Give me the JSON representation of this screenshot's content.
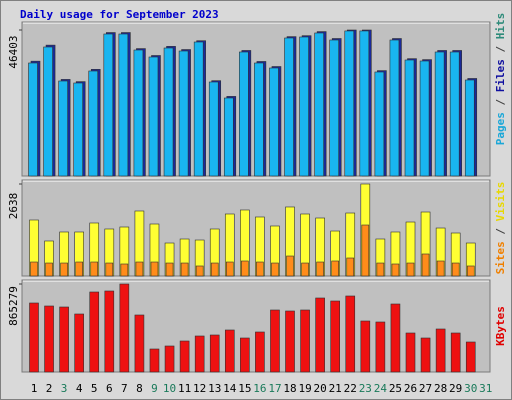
{
  "chart_data": [
    {
      "type": "bar",
      "title": "Daily usage for September 2023",
      "ylim": [
        0,
        46403
      ],
      "yticks": [
        46403
      ],
      "axis_label_parts": [
        {
          "text": "Pages",
          "color": "#1aa7d8"
        },
        {
          "text": " / ",
          "color": "#404040"
        },
        {
          "text": "Files",
          "color": "#1010a0"
        },
        {
          "text": " / ",
          "color": "#404040"
        },
        {
          "text": "Hits",
          "color": "#2e8b7a"
        }
      ],
      "series": [
        {
          "color": "#1a2a9a",
          "values": [
            36500,
            41600,
            30700,
            30000,
            33900,
            45600,
            45600,
            40500,
            38300,
            41200,
            40200,
            43000,
            30300,
            25300,
            39900,
            36400,
            34800,
            44300,
            44600,
            45900,
            43700,
            46403,
            46403,
            33500,
            43700,
            37300,
            37000,
            39900,
            39900,
            31000,
            null
          ]
        },
        {
          "color": "#19b5f0",
          "values": [
            35914,
            41000,
            30194,
            29558,
            33372,
            45132,
            45132,
            40046,
            37822,
            40682,
            39729,
            42589,
            29876,
            24790,
            39411,
            35914,
            34325,
            43861,
            44179,
            45450,
            43225,
            46100,
            46100,
            33054,
            43225,
            36868,
            36550,
            39411,
            39411,
            30512,
            null
          ]
        }
      ]
    },
    {
      "type": "bar",
      "ylim": [
        0,
        2638
      ],
      "yticks": [
        2638
      ],
      "axis_label_parts": [
        {
          "text": "Sites",
          "color": "#f08000"
        },
        {
          "text": " / ",
          "color": "#404040"
        },
        {
          "text": "Visits",
          "color": "#e8d800"
        }
      ],
      "series": [
        {
          "color": "#ffff33",
          "values": [
            1606,
            1004,
            1262,
            1262,
            1520,
            1348,
            1405,
            1864,
            1491,
            946,
            1061,
            1032,
            1348,
            1778,
            1893,
            1692,
            1434,
            1979,
            1778,
            1663,
            1290,
            1806,
            2638,
            1061,
            1262,
            1548,
            1835,
            1376,
            1233,
            946,
            null
          ]
        },
        {
          "color": "#ff8c1a",
          "values": [
            401,
            372,
            372,
            401,
            401,
            372,
            344,
            401,
            401,
            372,
            372,
            287,
            372,
            401,
            430,
            401,
            372,
            573,
            372,
            401,
            430,
            516,
            1462,
            372,
            344,
            372,
            631,
            430,
            372,
            287,
            null
          ]
        }
      ]
    },
    {
      "type": "bar",
      "ylim": [
        0,
        865279
      ],
      "yticks": [
        865279
      ],
      "axis_label_parts": [
        {
          "text": "KBytes",
          "color": "#e00000"
        }
      ],
      "categories": [
        "1",
        "2",
        "3",
        "4",
        "5",
        "6",
        "7",
        "8",
        "9",
        "10",
        "11",
        "12",
        "13",
        "14",
        "15",
        "16",
        "17",
        "18",
        "19",
        "20",
        "21",
        "22",
        "23",
        "24",
        "25",
        "26",
        "27",
        "28",
        "29",
        "30",
        "31"
      ],
      "category_colors": [
        "#000000",
        "#000000",
        "#1a7a5a",
        "#000000",
        "#000000",
        "#000000",
        "#000000",
        "#000000",
        "#1a7a5a",
        "#1a7a5a",
        "#000000",
        "#000000",
        "#000000",
        "#000000",
        "#000000",
        "#1a7a5a",
        "#1a7a5a",
        "#000000",
        "#000000",
        "#000000",
        "#000000",
        "#000000",
        "#1a7a5a",
        "#1a7a5a",
        "#000000",
        "#000000",
        "#000000",
        "#000000",
        "#000000",
        "#1a7a5a",
        "#1a7a5a"
      ],
      "series": [
        {
          "color": "#ee1111",
          "values": [
            678456,
            648958,
            639125,
            570319,
            786617,
            796450,
            865279,
            560486,
            226152,
            255650,
            304825,
            353989,
            363822,
            412985,
            334324,
            393319,
            609630,
            599797,
            609630,
            727621,
            698122,
            747288,
            501467,
            491640,
            668620,
            383477,
            334324,
            422803,
            383477,
            294983,
            null
          ]
        }
      ]
    }
  ]
}
